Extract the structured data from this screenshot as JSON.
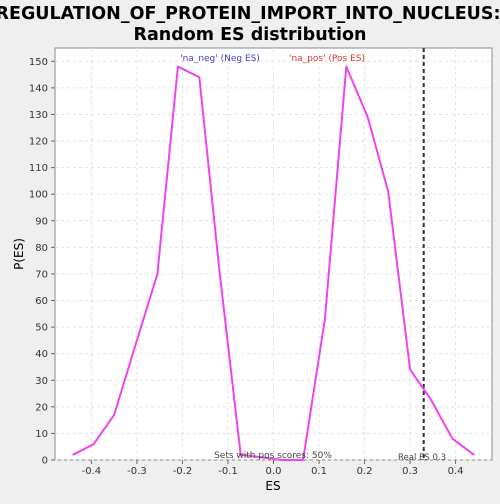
{
  "chart_data": {
    "type": "line",
    "title": "REGULATION_OF_PROTEIN_IMPORT_INTO_NUCLEUS:",
    "subtitle": "Random ES distribution",
    "xlabel": "ES",
    "ylabel": "P(ES)",
    "xlim": [
      -0.48,
      0.48
    ],
    "ylim": [
      0,
      155
    ],
    "grid": true,
    "xticks": [
      -0.4,
      -0.3,
      -0.2,
      -0.1,
      0.0,
      0.1,
      0.2,
      0.3,
      0.4
    ],
    "xtick_labels": [
      "-0.4",
      "-0.3",
      "-0.2",
      "-0.1",
      "0.0",
      "0.1",
      "0.2",
      "0.3",
      "0.4"
    ],
    "yticks": [
      0,
      10,
      20,
      30,
      40,
      50,
      60,
      70,
      80,
      90,
      100,
      110,
      120,
      130,
      140,
      150
    ],
    "ytick_labels": [
      "0",
      "10",
      "20",
      "30",
      "40",
      "50",
      "60",
      "70",
      "80",
      "90",
      "100",
      "110",
      "120",
      "130",
      "140",
      "150"
    ],
    "series": [
      {
        "color": "#ee44ee",
        "x": [
          -0.44,
          -0.395,
          -0.35,
          -0.3,
          -0.255,
          -0.21,
          -0.163,
          -0.118,
          -0.072,
          -0.027,
          0.018,
          0.065,
          0.113,
          0.16,
          0.207,
          0.252,
          0.3,
          0.345,
          0.393,
          0.44
        ],
        "y": [
          2,
          6,
          17,
          45,
          70,
          148,
          144,
          70,
          2,
          1,
          0,
          0,
          53,
          148,
          129,
          101,
          34,
          23,
          8,
          2
        ]
      }
    ],
    "reference_line": {
      "x": 0.33,
      "label": "Real ES 0.3",
      "color": "#333333",
      "style": "dashed"
    },
    "annotations": {
      "neg": {
        "text": "'na_neg' (Neg ES)",
        "color": "#4040cc"
      },
      "pos": {
        "text": "'na_pos' (Pos ES)",
        "color": "#dd3333"
      },
      "footer": "Sets with pos scores: 50%"
    }
  }
}
